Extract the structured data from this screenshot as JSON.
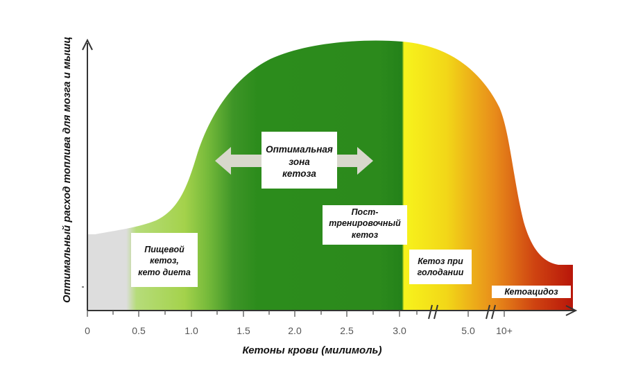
{
  "chart_data": {
    "type": "area",
    "title": "",
    "xlabel": "Кетоны крови (милимоль)",
    "ylabel": "Оптимальный расход топлива для мозга и мышц",
    "x_ticks": [
      "0",
      "0.5",
      "1.0",
      "1.5",
      "2.0",
      "2.5",
      "3.0",
      "5.0",
      "10+"
    ],
    "x_axis_breaks": [
      "3.0–5.0",
      "5.0–10+"
    ],
    "curve": [
      {
        "x": "0.05",
        "y": 0.3
      },
      {
        "x": "0.5",
        "y": 0.33
      },
      {
        "x": "0.8",
        "y": 0.42
      },
      {
        "x": "1.0",
        "y": 0.58
      },
      {
        "x": "1.3",
        "y": 0.8
      },
      {
        "x": "1.6",
        "y": 0.92
      },
      {
        "x": "2.0",
        "y": 0.97
      },
      {
        "x": "2.5",
        "y": 1.0
      },
      {
        "x": "3.0",
        "y": 0.99
      },
      {
        "x": "4.0",
        "y": 0.93
      },
      {
        "x": "5.0",
        "y": 0.72
      },
      {
        "x": "5.5",
        "y": 0.4
      },
      {
        "x": "10+",
        "y": 0.17
      }
    ],
    "zones": [
      {
        "label": "Пищевой кетоз, кето диета",
        "color": "#a5d34d"
      },
      {
        "label": "Оптимальная зона кетоза",
        "color": "#2c8c1b"
      },
      {
        "label": "Пост-тренировочный кетоз",
        "color": "#2a861a"
      },
      {
        "label": "Кетоз при голодании",
        "color": "#f5ee12"
      },
      {
        "label": "Кетоацидоз",
        "color": "#b8160a"
      }
    ]
  },
  "labels": {
    "nutritional": [
      "Пищевой",
      "кетоз,",
      "кето диета"
    ],
    "optimal": [
      "Оптимальная",
      "зона",
      "кетоза"
    ],
    "post_workout": [
      "Пост-",
      "тренировочный",
      "кетоз"
    ],
    "fasting": [
      "Кетоз  при",
      "голодании"
    ],
    "ketoacidosis": "Кетоацидоз"
  },
  "colors": {
    "gray_zone": "#dddddd",
    "light_green": "#a5d34d",
    "dark_green": "#2b8a1c",
    "yellow": "#f9f518",
    "orange": "#e98b1a",
    "red": "#b8160a",
    "axis": "#333333",
    "arrow": "#d6d6cc"
  },
  "icons": {
    "y_axis_arrow": "arrow-up-icon",
    "x_axis_arrow": "arrow-right-icon",
    "optimal_zone_arrow": "double-arrow-icon"
  }
}
